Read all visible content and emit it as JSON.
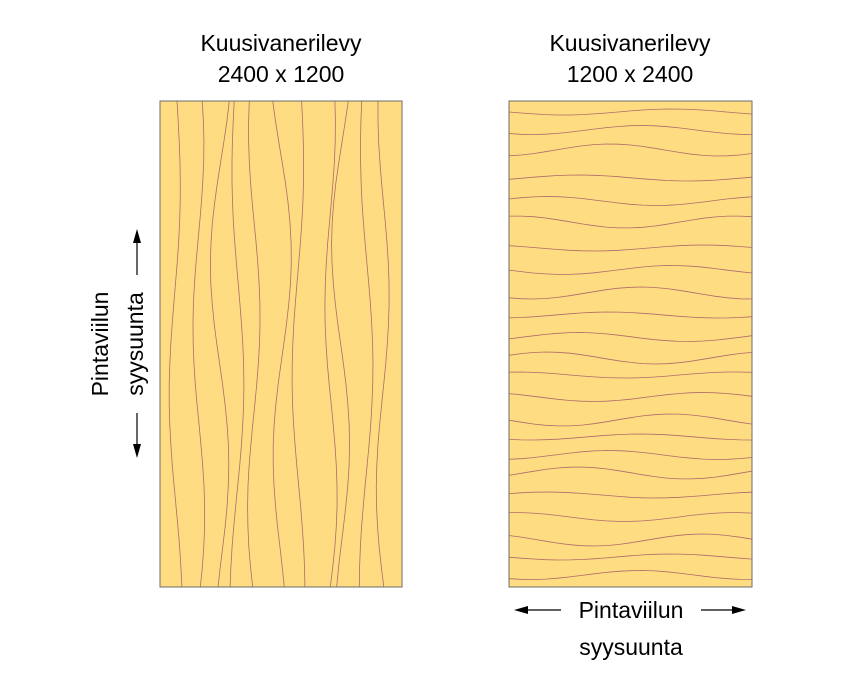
{
  "panels": [
    {
      "title": "Kuusivanerilevy",
      "size": "2400 x 1200",
      "grain": "vertical"
    },
    {
      "title": "Kuusivanerilevy",
      "size": "1200 x 2400",
      "grain": "horizontal"
    }
  ],
  "direction_labels": {
    "left": {
      "line1": "Pintaviilun",
      "line2": "syysuunta"
    },
    "bottom": {
      "line1": "Pintaviilun",
      "line2": "syysuunta"
    }
  },
  "colors": {
    "panel_fill": "#fddc82",
    "panel_border": "#6b6b6b",
    "grain_line": "#b06a6a",
    "arrow": "#000000"
  }
}
